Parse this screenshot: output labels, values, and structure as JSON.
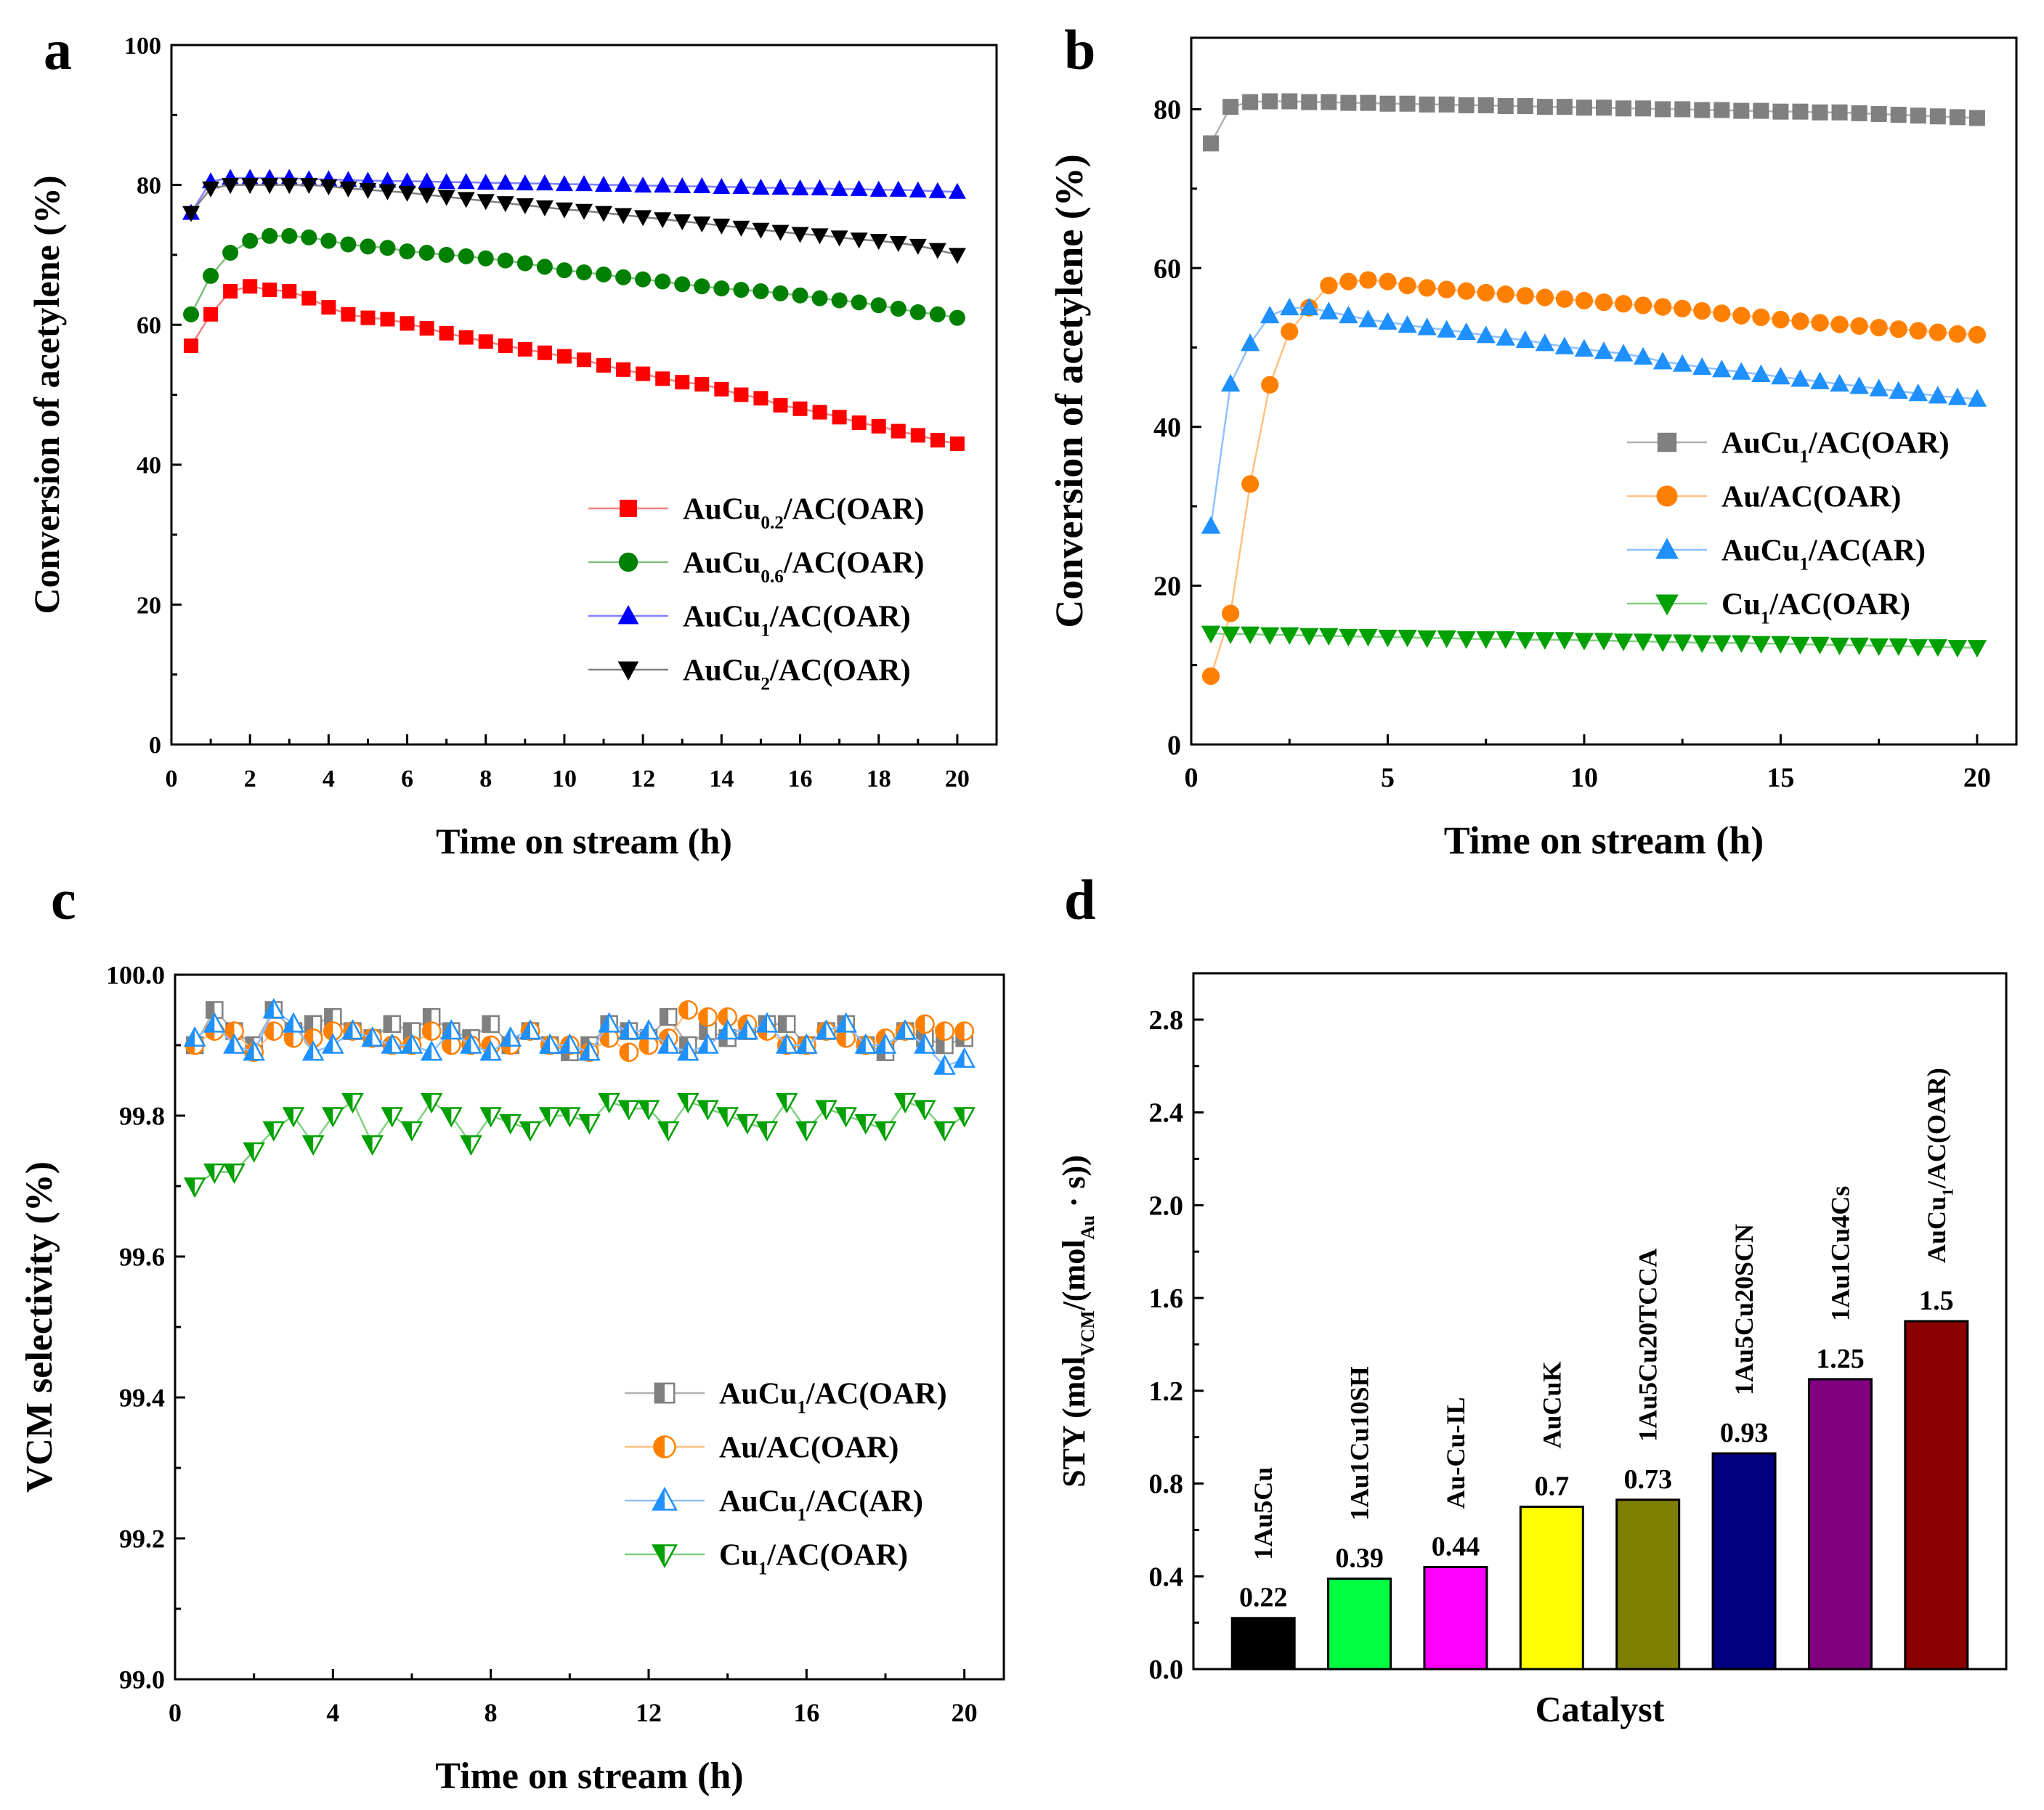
{
  "chart_data": [
    {
      "panel": "a",
      "type": "line",
      "xlabel": "Time on stream (h)",
      "ylabel": "Conversion of acetylene (%)",
      "xlim": [
        0,
        21
      ],
      "ylim": [
        0,
        100
      ],
      "xticks": [
        0,
        2,
        4,
        6,
        8,
        10,
        12,
        14,
        16,
        18,
        20
      ],
      "yticks": [
        0,
        20,
        40,
        60,
        80,
        100
      ],
      "x": [
        0.5,
        1,
        1.5,
        2,
        2.5,
        3,
        3.5,
        4,
        4.5,
        5,
        5.5,
        6,
        6.5,
        7,
        7.5,
        8,
        8.5,
        9,
        9.5,
        10,
        10.5,
        11,
        11.5,
        12,
        12.5,
        13,
        13.5,
        14,
        14.5,
        15,
        15.5,
        16,
        16.5,
        17,
        17.5,
        18,
        18.5,
        19,
        19.5,
        20
      ],
      "legend_position": "bottom-right",
      "series": [
        {
          "name": "AuCu0.2/AC(OAR)",
          "legend": [
            "AuCu",
            "0.2",
            "/AC(OAR)"
          ],
          "color": "#ff0000",
          "line": "#f08080",
          "marker": "square",
          "values": [
            57,
            61.5,
            64.8,
            65.5,
            65,
            64.8,
            63.8,
            62.5,
            61.5,
            61,
            60.8,
            60.2,
            59.5,
            58.8,
            58.2,
            57.6,
            57,
            56.5,
            56,
            55.5,
            55,
            54.2,
            53.6,
            53,
            52.3,
            51.8,
            51.5,
            50.8,
            50,
            49.5,
            48.5,
            48,
            47.5,
            46.8,
            46,
            45.5,
            44.8,
            44.2,
            43.5,
            43
          ]
        },
        {
          "name": "AuCu0.6/AC(OAR)",
          "legend": [
            "AuCu",
            "0.6",
            "/AC(OAR)"
          ],
          "color": "#008000",
          "line": "#7fbf7f",
          "marker": "circle",
          "values": [
            61.5,
            67,
            70.3,
            72,
            72.7,
            72.7,
            72.5,
            72,
            71.5,
            71.2,
            71,
            70.5,
            70.3,
            70,
            69.8,
            69.5,
            69.2,
            68.8,
            68.3,
            67.8,
            67.5,
            67.2,
            66.8,
            66.5,
            66.2,
            65.8,
            65.5,
            65.2,
            65,
            64.8,
            64.5,
            64.2,
            63.8,
            63.5,
            63.2,
            62.8,
            62.3,
            61.8,
            61.5,
            61
          ]
        },
        {
          "name": "AuCu1/AC(OAR)",
          "legend": [
            "AuCu",
            "1",
            "/AC(OAR)"
          ],
          "color": "#0000ff",
          "line": "#8080ff",
          "marker": "triangle-up",
          "values": [
            76,
            80.5,
            81,
            81,
            81,
            81,
            80.8,
            80.8,
            80.7,
            80.6,
            80.6,
            80.5,
            80.5,
            80.4,
            80.4,
            80.3,
            80.3,
            80.2,
            80.2,
            80.1,
            80.1,
            80,
            80,
            79.9,
            79.9,
            79.8,
            79.8,
            79.7,
            79.7,
            79.6,
            79.6,
            79.5,
            79.5,
            79.4,
            79.4,
            79.3,
            79.3,
            79.2,
            79.1,
            79
          ]
        },
        {
          "name": "AuCu2/AC(OAR)",
          "legend": [
            "AuCu",
            "2",
            "/AC(OAR)"
          ],
          "color": "#000000",
          "line": "#808080",
          "marker": "triangle-down",
          "values": [
            76,
            79.5,
            80,
            80,
            80,
            80,
            80,
            79.8,
            79.5,
            79.3,
            79.1,
            78.9,
            78.6,
            78.3,
            78,
            77.7,
            77.4,
            77.1,
            76.8,
            76.5,
            76.3,
            76,
            75.7,
            75.4,
            75.1,
            74.8,
            74.5,
            74.2,
            73.9,
            73.6,
            73.3,
            73,
            72.8,
            72.5,
            72.2,
            72,
            71.7,
            71.3,
            70.7,
            70
          ]
        }
      ]
    },
    {
      "panel": "b",
      "type": "line",
      "xlabel": "Time on stream (h)",
      "ylabel": "Conversion of acetylene (%)",
      "xlim": [
        0,
        21
      ],
      "ylim": [
        0,
        89
      ],
      "xticks": [
        0,
        5,
        10,
        15,
        20
      ],
      "yticks": [
        0,
        20,
        40,
        60,
        80
      ],
      "x": [
        0.5,
        1,
        1.5,
        2,
        2.5,
        3,
        3.5,
        4,
        4.5,
        5,
        5.5,
        6,
        6.5,
        7,
        7.5,
        8,
        8.5,
        9,
        9.5,
        10,
        10.5,
        11,
        11.5,
        12,
        12.5,
        13,
        13.5,
        14,
        14.5,
        15,
        15.5,
        16,
        16.5,
        17,
        17.5,
        18,
        18.5,
        19,
        19.5,
        20
      ],
      "legend_position": "center-right",
      "series": [
        {
          "name": "AuCu1/AC(OAR)",
          "legend": [
            "AuCu",
            "1",
            "/AC(OAR)"
          ],
          "color": "#808080",
          "line": "#b0b0b0",
          "marker": "square",
          "values": [
            75.7,
            80.3,
            80.9,
            81,
            81,
            80.9,
            80.9,
            80.8,
            80.8,
            80.7,
            80.7,
            80.6,
            80.6,
            80.5,
            80.5,
            80.4,
            80.4,
            80.3,
            80.3,
            80.2,
            80.2,
            80.1,
            80.1,
            80,
            80,
            79.9,
            79.9,
            79.8,
            79.8,
            79.7,
            79.7,
            79.6,
            79.6,
            79.5,
            79.4,
            79.3,
            79.2,
            79.1,
            79,
            78.9
          ]
        },
        {
          "name": "Au/AC(OAR)",
          "legend": [
            "Au",
            "",
            "/AC(OAR)"
          ],
          "color": "#ff8000",
          "line": "#ffc080",
          "marker": "circle",
          "values": [
            8.6,
            16.5,
            32.8,
            45.3,
            52,
            55,
            57.8,
            58.3,
            58.5,
            58.3,
            57.8,
            57.5,
            57.3,
            57.1,
            56.9,
            56.7,
            56.5,
            56.3,
            56.1,
            55.9,
            55.7,
            55.5,
            55.3,
            55.1,
            54.9,
            54.6,
            54.3,
            54,
            53.8,
            53.5,
            53.3,
            53.1,
            52.9,
            52.7,
            52.5,
            52.3,
            52.1,
            51.9,
            51.7,
            51.6
          ]
        },
        {
          "name": "AuCu1/AC(AR)",
          "legend": [
            "AuCu",
            "1",
            "/AC(AR)"
          ],
          "color": "#1e90ff",
          "line": "#90c0ff",
          "marker": "triangle-up",
          "values": [
            27.5,
            45.4,
            50.5,
            54,
            55,
            55,
            54.5,
            54,
            53.5,
            53.2,
            52.8,
            52.5,
            52.2,
            51.9,
            51.5,
            51.2,
            50.9,
            50.5,
            50.1,
            49.8,
            49.5,
            49.2,
            48.8,
            48.2,
            47.9,
            47.5,
            47.2,
            46.9,
            46.6,
            46.3,
            46,
            45.7,
            45.4,
            45.1,
            44.8,
            44.5,
            44.2,
            43.9,
            43.7,
            43.5
          ]
        },
        {
          "name": "Cu1/AC(OAR)",
          "legend": [
            "Cu",
            "1",
            "/AC(OAR)"
          ],
          "color": "#00a000",
          "line": "#80d080",
          "marker": "triangle-down",
          "values": [
            14,
            13.9,
            13.9,
            13.8,
            13.8,
            13.7,
            13.7,
            13.6,
            13.6,
            13.5,
            13.5,
            13.4,
            13.4,
            13.3,
            13.3,
            13.3,
            13.2,
            13.2,
            13.2,
            13.1,
            13.1,
            13,
            13,
            12.9,
            12.9,
            12.8,
            12.8,
            12.8,
            12.7,
            12.7,
            12.6,
            12.6,
            12.5,
            12.5,
            12.4,
            12.4,
            12.3,
            12.3,
            12.2,
            12.2
          ]
        }
      ]
    },
    {
      "panel": "c",
      "type": "line",
      "xlabel": "Time on stream (h)",
      "ylabel": "VCM selectivity (%)",
      "xlim": [
        0,
        21
      ],
      "ylim": [
        99.0,
        100.0
      ],
      "xticks": [
        0,
        4,
        8,
        12,
        16,
        20
      ],
      "yticks": [
        99.0,
        99.2,
        99.4,
        99.6,
        99.8,
        100.0
      ],
      "ytick_labels": [
        "99.0",
        "99.2",
        "99.4",
        "99.6",
        "99.8",
        "100.0"
      ],
      "x": [
        0.5,
        1,
        1.5,
        2,
        2.5,
        3,
        3.5,
        4,
        4.5,
        5,
        5.5,
        6,
        6.5,
        7,
        7.5,
        8,
        8.5,
        9,
        9.5,
        10,
        10.5,
        11,
        11.5,
        12,
        12.5,
        13,
        13.5,
        14,
        14.5,
        15,
        15.5,
        16,
        16.5,
        17,
        17.5,
        18,
        18.5,
        19,
        19.5,
        20
      ],
      "legend_position": "bottom-right",
      "series": [
        {
          "name": "AuCu1/AC(OAR)",
          "legend": [
            "AuCu",
            "1",
            "/AC(OAR)"
          ],
          "color": "#808080",
          "line": "#b0b0b0",
          "marker": "square-half",
          "values": [
            99.9,
            99.95,
            99.92,
            99.9,
            99.95,
            99.92,
            99.93,
            99.94,
            99.92,
            99.91,
            99.93,
            99.92,
            99.94,
            99.92,
            99.91,
            99.93,
            99.9,
            99.92,
            99.9,
            99.89,
            99.9,
            99.93,
            99.92,
            99.91,
            99.94,
            99.9,
            99.92,
            99.91,
            99.92,
            99.93,
            99.93,
            99.9,
            99.92,
            99.93,
            99.9,
            99.89,
            99.92,
            99.91,
            99.9,
            99.91
          ]
        },
        {
          "name": "Au/AC(OAR)",
          "legend": [
            "Au",
            "",
            "/AC(OAR)"
          ],
          "color": "#ff8000",
          "line": "#ffc080",
          "marker": "circle-half",
          "values": [
            99.9,
            99.92,
            99.92,
            99.89,
            99.92,
            99.91,
            99.91,
            99.92,
            99.92,
            99.91,
            99.9,
            99.9,
            99.92,
            99.9,
            99.9,
            99.9,
            99.9,
            99.92,
            99.9,
            99.9,
            99.89,
            99.91,
            99.89,
            99.9,
            99.91,
            99.95,
            99.94,
            99.94,
            99.93,
            99.92,
            99.9,
            99.9,
            99.92,
            99.91,
            99.9,
            99.91,
            99.92,
            99.93,
            99.92,
            99.92
          ]
        },
        {
          "name": "AuCu1/AC(AR)",
          "legend": [
            "AuCu",
            "1",
            "/AC(AR)"
          ],
          "color": "#1e90ff",
          "line": "#90c0ff",
          "marker": "triangle-up-half",
          "values": [
            99.91,
            99.93,
            99.9,
            99.89,
            99.95,
            99.93,
            99.89,
            99.9,
            99.92,
            99.91,
            99.9,
            99.9,
            99.89,
            99.92,
            99.9,
            99.89,
            99.91,
            99.92,
            99.9,
            99.9,
            99.89,
            99.93,
            99.92,
            99.92,
            99.9,
            99.89,
            99.9,
            99.92,
            99.92,
            99.93,
            99.9,
            99.9,
            99.92,
            99.93,
            99.9,
            99.9,
            99.92,
            99.9,
            99.87,
            99.88
          ]
        },
        {
          "name": "Cu1/AC(OAR)",
          "legend": [
            "Cu",
            "1",
            "/AC(OAR)"
          ],
          "color": "#00a000",
          "line": "#80d080",
          "marker": "triangle-down-half",
          "values": [
            99.7,
            99.72,
            99.72,
            99.75,
            99.78,
            99.8,
            99.76,
            99.8,
            99.82,
            99.76,
            99.8,
            99.78,
            99.82,
            99.8,
            99.76,
            99.8,
            99.79,
            99.78,
            99.8,
            99.8,
            99.79,
            99.82,
            99.81,
            99.81,
            99.78,
            99.82,
            99.81,
            99.8,
            99.79,
            99.78,
            99.82,
            99.78,
            99.81,
            99.8,
            99.79,
            99.78,
            99.82,
            99.81,
            99.78,
            99.8
          ]
        }
      ]
    },
    {
      "panel": "d",
      "type": "bar",
      "xlabel": "Catalyst",
      "ylabel_parts": [
        "STY (mol",
        "VCM",
        "/(mol",
        "Au",
        " · s))"
      ],
      "ylim": [
        0,
        3.0
      ],
      "yticks": [
        0.0,
        0.4,
        0.8,
        1.2,
        1.6,
        2.0,
        2.4,
        2.8
      ],
      "ytick_labels": [
        "0.0",
        "0.4",
        "0.8",
        "1.2",
        "1.6",
        "2.0",
        "2.4",
        "2.8"
      ],
      "categories": [
        "1Au5Cu",
        "1Au1Cu10SH",
        "Au-Cu-IL",
        "AuCuK",
        "1Au5Cu20TCCA",
        "1Au5Cu20SCN",
        "1Au1Cu4Cs",
        "AuCu1/AC(OAR)"
      ],
      "values": [
        0.22,
        0.39,
        0.44,
        0.7,
        0.73,
        0.93,
        1.25,
        1.5
      ],
      "value_labels": [
        "0.22",
        "0.39",
        "0.44",
        "0.7",
        "0.73",
        "0.93",
        "1.25",
        "1.5"
      ],
      "last_category_parts": [
        "AuCu",
        "1",
        "/AC(OAR)"
      ],
      "colors": [
        "#000000",
        "#00ff40",
        "#ff00ff",
        "#ffff00",
        "#808000",
        "#000080",
        "#800080",
        "#8b0000"
      ]
    }
  ],
  "panel_labels": [
    "a",
    "b",
    "c",
    "d"
  ]
}
